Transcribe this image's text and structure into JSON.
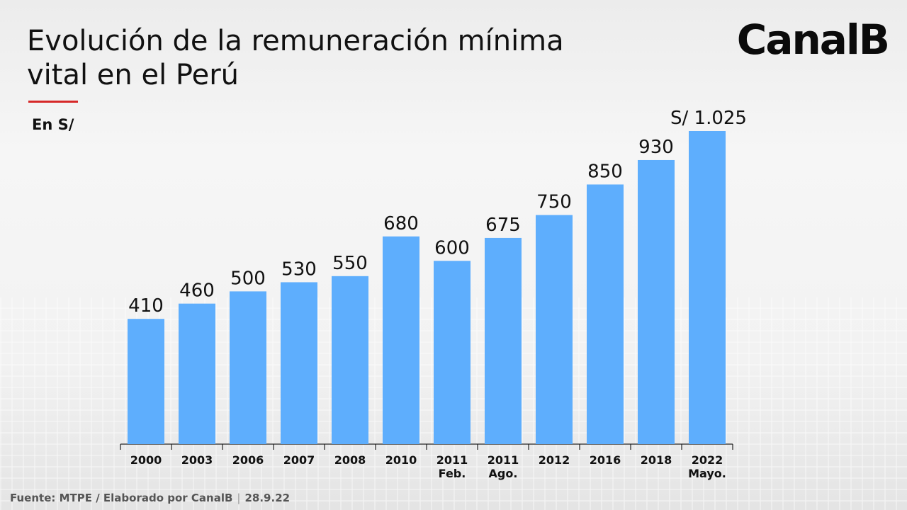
{
  "header": {
    "title": "Evolución de la remuneración mínima vital en el Perú",
    "unit": "En S/",
    "brand": "CanalB"
  },
  "footer": {
    "source": "Fuente: MTPE / Elaborado por CanalB",
    "separator": "|",
    "date": "28.9.22"
  },
  "colors": {
    "bar": "#5eaefd",
    "accent": "#d62828"
  },
  "chart_data": {
    "type": "bar",
    "title": "Evolución de la remuneración mínima vital en el Perú",
    "ylabel": "En S/",
    "xlabel": "",
    "categories": [
      [
        "2000"
      ],
      [
        "2003"
      ],
      [
        "2006"
      ],
      [
        "2007"
      ],
      [
        "2008"
      ],
      [
        "2010"
      ],
      [
        "2011",
        "Feb."
      ],
      [
        "2011",
        "Ago."
      ],
      [
        "2012"
      ],
      [
        "2016"
      ],
      [
        "2018"
      ],
      [
        "2022",
        "Mayo."
      ]
    ],
    "values": [
      410,
      460,
      500,
      530,
      550,
      680,
      600,
      675,
      750,
      850,
      930,
      1025
    ],
    "labels": [
      "410",
      "460",
      "500",
      "530",
      "550",
      "680",
      "600",
      "675",
      "750",
      "850",
      "930",
      "S/ 1.025"
    ],
    "ylim": [
      0,
      1025
    ],
    "grid": false,
    "legend": "none"
  }
}
